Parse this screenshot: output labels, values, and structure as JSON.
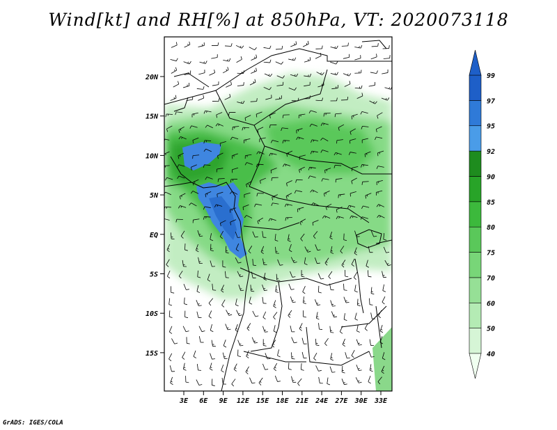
{
  "title": "Wind[kt] and RH[%] at 850hPa, VT: 2020073118",
  "credit": "GrADS: IGES/COLA",
  "map": {
    "lat_labels": [
      "20N",
      "15N",
      "10N",
      "5N",
      "EQ",
      "5S",
      "10S",
      "15S"
    ],
    "lon_labels": [
      "3E",
      "6E",
      "9E",
      "12E",
      "15E",
      "18E",
      "21E",
      "24E",
      "27E",
      "30E",
      "33E"
    ]
  },
  "colorbar": {
    "levels": [
      "40",
      "50",
      "60",
      "70",
      "75",
      "80",
      "85",
      "90",
      "92",
      "95",
      "97",
      "99"
    ],
    "colors": [
      "#f0fff0",
      "#d6f5d6",
      "#b4ebb4",
      "#96e096",
      "#78d678",
      "#5ac85a",
      "#3cb93c",
      "#28a428",
      "#1e8c1e",
      "#4a9ce8",
      "#2f7ad8",
      "#1e5fc8"
    ]
  }
}
